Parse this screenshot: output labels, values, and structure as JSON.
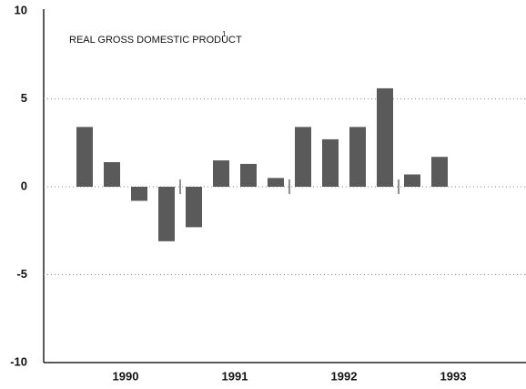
{
  "chart_data": {
    "type": "bar",
    "title": "REAL GROSS DOMESTIC PRODUCT",
    "title_note": "1",
    "categories": [
      null,
      null,
      null,
      null,
      null,
      null,
      null,
      null,
      null,
      null,
      null,
      null,
      null,
      null
    ],
    "values": [
      3.4,
      1.4,
      -0.8,
      -3.1,
      -2.3,
      1.5,
      1.3,
      0.5,
      3.4,
      2.7,
      3.4,
      5.6,
      0.7,
      1.7
    ],
    "year_labels": [
      "1990",
      "1991",
      "1992",
      "1993"
    ],
    "color": "#5a5a5a",
    "ylim": [
      -10,
      10
    ],
    "yticks": [
      -10,
      -5,
      0,
      5,
      10
    ],
    "grid": true
  }
}
